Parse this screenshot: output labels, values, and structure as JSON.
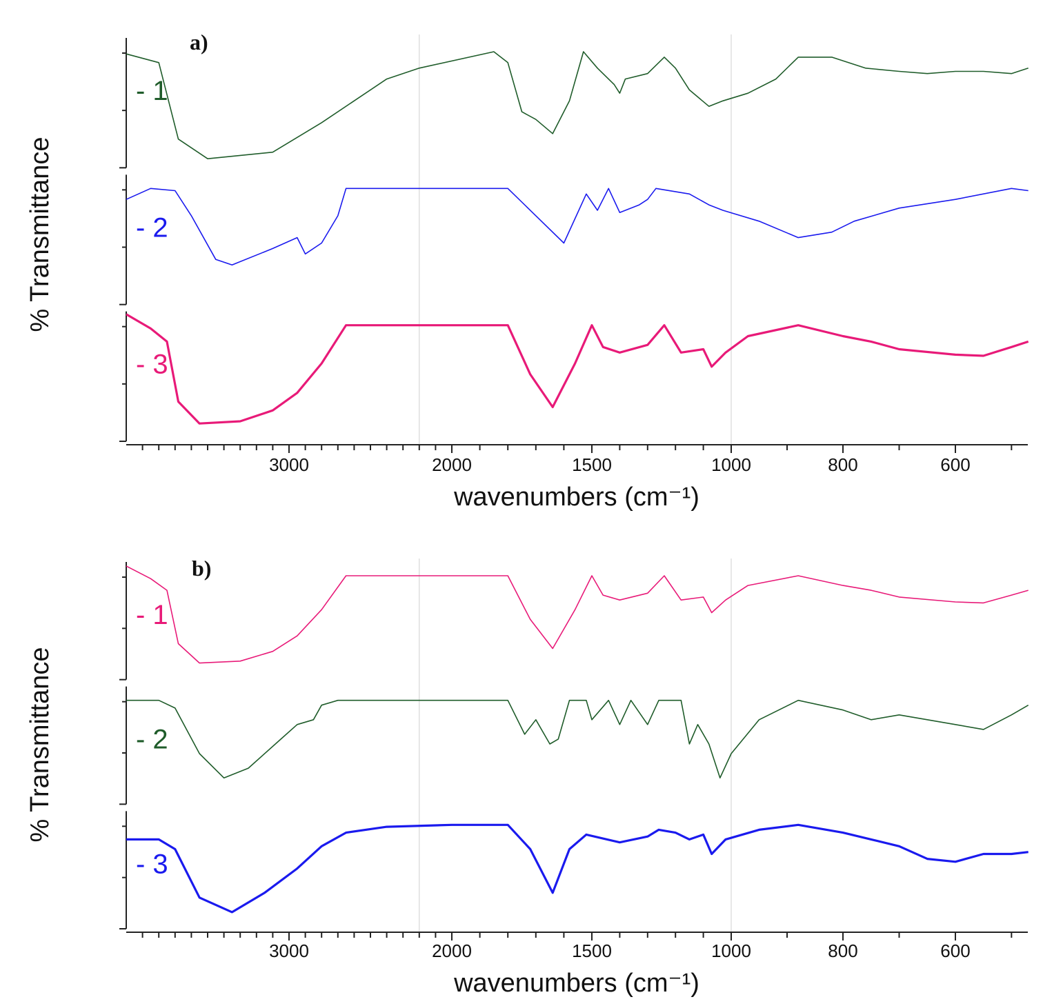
{
  "chart_data": [
    {
      "type": "line",
      "panel_label": "a)",
      "ylabel": "% Transmittance",
      "xlabel": "wavenumbers (cm⁻¹)",
      "x_ticks": [
        "3000",
        "2000",
        "1500",
        "1000",
        "800",
        "600"
      ],
      "x_tick_values": [
        3000,
        2000,
        1500,
        1000,
        800,
        600
      ],
      "xlim": [
        4000,
        450
      ],
      "axis_scale": "split: linear 4000-2000 and 2000-450 segments",
      "ylim": [
        0,
        1
      ],
      "gridlines_x": [
        2200,
        1000
      ],
      "series": [
        {
          "name": "- 1",
          "color": "#1f5c2a",
          "stacked_index": 0,
          "points": [
            [
              4000,
              0.98
            ],
            [
              3800,
              0.9
            ],
            [
              3680,
              0.2
            ],
            [
              3500,
              0.02
            ],
            [
              3100,
              0.08
            ],
            [
              2800,
              0.35
            ],
            [
              2400,
              0.75
            ],
            [
              2200,
              0.85
            ],
            [
              1850,
              1.0
            ],
            [
              1800,
              0.9
            ],
            [
              1750,
              0.45
            ],
            [
              1700,
              0.38
            ],
            [
              1640,
              0.25
            ],
            [
              1580,
              0.55
            ],
            [
              1530,
              1.0
            ],
            [
              1480,
              0.85
            ],
            [
              1420,
              0.7
            ],
            [
              1400,
              0.62
            ],
            [
              1380,
              0.75
            ],
            [
              1300,
              0.8
            ],
            [
              1240,
              0.95
            ],
            [
              1200,
              0.85
            ],
            [
              1150,
              0.65
            ],
            [
              1080,
              0.5
            ],
            [
              1030,
              0.55
            ],
            [
              970,
              0.62
            ],
            [
              920,
              0.75
            ],
            [
              880,
              0.95
            ],
            [
              820,
              0.95
            ],
            [
              760,
              0.85
            ],
            [
              700,
              0.82
            ],
            [
              650,
              0.8
            ],
            [
              600,
              0.82
            ],
            [
              550,
              0.82
            ],
            [
              500,
              0.8
            ],
            [
              470,
              0.85
            ]
          ]
        },
        {
          "name": "- 2",
          "color": "#1a1aee",
          "stacked_index": 1,
          "points": [
            [
              4000,
              0.9
            ],
            [
              3850,
              1.0
            ],
            [
              3700,
              0.98
            ],
            [
              3600,
              0.75
            ],
            [
              3450,
              0.35
            ],
            [
              3350,
              0.3
            ],
            [
              3100,
              0.45
            ],
            [
              2950,
              0.55
            ],
            [
              2900,
              0.4
            ],
            [
              2800,
              0.5
            ],
            [
              2700,
              0.75
            ],
            [
              2650,
              1.0
            ],
            [
              1800,
              1.0
            ],
            [
              1700,
              0.75
            ],
            [
              1600,
              0.5
            ],
            [
              1520,
              0.95
            ],
            [
              1480,
              0.8
            ],
            [
              1440,
              1.0
            ],
            [
              1400,
              0.78
            ],
            [
              1330,
              0.85
            ],
            [
              1300,
              0.9
            ],
            [
              1270,
              1.0
            ],
            [
              1150,
              0.95
            ],
            [
              1080,
              0.85
            ],
            [
              1030,
              0.8
            ],
            [
              950,
              0.7
            ],
            [
              880,
              0.55
            ],
            [
              820,
              0.6
            ],
            [
              780,
              0.7
            ],
            [
              700,
              0.82
            ],
            [
              600,
              0.9
            ],
            [
              500,
              1.0
            ],
            [
              470,
              0.98
            ]
          ]
        },
        {
          "name": "- 3",
          "color": "#e81a78",
          "stacked_index": 2,
          "points": [
            [
              4000,
              1.1
            ],
            [
              3850,
              0.97
            ],
            [
              3750,
              0.85
            ],
            [
              3680,
              0.3
            ],
            [
              3550,
              0.1
            ],
            [
              3300,
              0.12
            ],
            [
              3100,
              0.22
            ],
            [
              2950,
              0.38
            ],
            [
              2800,
              0.65
            ],
            [
              2650,
              1.0
            ],
            [
              1800,
              1.0
            ],
            [
              1720,
              0.55
            ],
            [
              1640,
              0.25
            ],
            [
              1560,
              0.65
            ],
            [
              1500,
              1.0
            ],
            [
              1460,
              0.8
            ],
            [
              1400,
              0.75
            ],
            [
              1300,
              0.82
            ],
            [
              1240,
              1.0
            ],
            [
              1180,
              0.75
            ],
            [
              1100,
              0.78
            ],
            [
              1070,
              0.62
            ],
            [
              1020,
              0.75
            ],
            [
              970,
              0.9
            ],
            [
              880,
              1.0
            ],
            [
              800,
              0.9
            ],
            [
              750,
              0.85
            ],
            [
              700,
              0.78
            ],
            [
              600,
              0.73
            ],
            [
              550,
              0.72
            ],
            [
              500,
              0.8
            ],
            [
              470,
              0.85
            ]
          ]
        }
      ],
      "legend": [
        "- 1",
        "- 2",
        "- 3"
      ]
    },
    {
      "type": "line",
      "panel_label": "b)",
      "ylabel": "% Transmittance",
      "xlabel": "wavenumbers (cm⁻¹)",
      "x_ticks": [
        "3000",
        "2000",
        "1500",
        "1000",
        "800",
        "600"
      ],
      "x_tick_values": [
        3000,
        2000,
        1500,
        1000,
        800,
        600
      ],
      "xlim": [
        4000,
        450
      ],
      "axis_scale": "split: linear 4000-2000 and 2000-450 segments",
      "ylim": [
        0,
        1
      ],
      "gridlines_x": [
        2200,
        1000
      ],
      "series": [
        {
          "name": "- 1",
          "color": "#e81a78",
          "stacked_index": 0,
          "points": [
            [
              4000,
              1.1
            ],
            [
              3850,
              0.97
            ],
            [
              3750,
              0.85
            ],
            [
              3680,
              0.3
            ],
            [
              3550,
              0.1
            ],
            [
              3300,
              0.12
            ],
            [
              3100,
              0.22
            ],
            [
              2950,
              0.38
            ],
            [
              2800,
              0.65
            ],
            [
              2650,
              1.0
            ],
            [
              1800,
              1.0
            ],
            [
              1720,
              0.55
            ],
            [
              1640,
              0.25
            ],
            [
              1560,
              0.65
            ],
            [
              1500,
              1.0
            ],
            [
              1460,
              0.8
            ],
            [
              1400,
              0.75
            ],
            [
              1300,
              0.82
            ],
            [
              1240,
              1.0
            ],
            [
              1180,
              0.75
            ],
            [
              1100,
              0.78
            ],
            [
              1070,
              0.62
            ],
            [
              1020,
              0.75
            ],
            [
              970,
              0.9
            ],
            [
              880,
              1.0
            ],
            [
              800,
              0.9
            ],
            [
              750,
              0.85
            ],
            [
              700,
              0.78
            ],
            [
              600,
              0.73
            ],
            [
              550,
              0.72
            ],
            [
              500,
              0.8
            ],
            [
              470,
              0.85
            ]
          ]
        },
        {
          "name": "- 2",
          "color": "#1f5c2a",
          "stacked_index": 1,
          "points": [
            [
              4000,
              1.0
            ],
            [
              3800,
              1.0
            ],
            [
              3700,
              0.92
            ],
            [
              3550,
              0.45
            ],
            [
              3400,
              0.2
            ],
            [
              3250,
              0.3
            ],
            [
              3050,
              0.6
            ],
            [
              2950,
              0.75
            ],
            [
              2850,
              0.8
            ],
            [
              2800,
              0.95
            ],
            [
              2700,
              1.0
            ],
            [
              1800,
              1.0
            ],
            [
              1740,
              0.65
            ],
            [
              1700,
              0.8
            ],
            [
              1650,
              0.55
            ],
            [
              1620,
              0.6
            ],
            [
              1580,
              1.0
            ],
            [
              1520,
              1.0
            ],
            [
              1500,
              0.8
            ],
            [
              1440,
              1.0
            ],
            [
              1400,
              0.75
            ],
            [
              1360,
              1.0
            ],
            [
              1300,
              0.75
            ],
            [
              1260,
              1.0
            ],
            [
              1180,
              1.0
            ],
            [
              1150,
              0.55
            ],
            [
              1120,
              0.75
            ],
            [
              1080,
              0.55
            ],
            [
              1040,
              0.2
            ],
            [
              1000,
              0.45
            ],
            [
              950,
              0.8
            ],
            [
              880,
              1.0
            ],
            [
              800,
              0.9
            ],
            [
              750,
              0.8
            ],
            [
              700,
              0.85
            ],
            [
              650,
              0.8
            ],
            [
              600,
              0.75
            ],
            [
              550,
              0.7
            ],
            [
              500,
              0.85
            ],
            [
              470,
              0.95
            ]
          ]
        },
        {
          "name": "- 3",
          "color": "#1a1aee",
          "stacked_index": 2,
          "points": [
            [
              4000,
              0.85
            ],
            [
              3800,
              0.85
            ],
            [
              3700,
              0.75
            ],
            [
              3550,
              0.25
            ],
            [
              3350,
              0.1
            ],
            [
              3150,
              0.3
            ],
            [
              2950,
              0.55
            ],
            [
              2800,
              0.78
            ],
            [
              2650,
              0.92
            ],
            [
              2400,
              0.98
            ],
            [
              2000,
              1.0
            ],
            [
              1800,
              1.0
            ],
            [
              1720,
              0.75
            ],
            [
              1640,
              0.3
            ],
            [
              1580,
              0.75
            ],
            [
              1520,
              0.9
            ],
            [
              1400,
              0.82
            ],
            [
              1300,
              0.88
            ],
            [
              1260,
              0.95
            ],
            [
              1200,
              0.92
            ],
            [
              1150,
              0.85
            ],
            [
              1100,
              0.9
            ],
            [
              1070,
              0.7
            ],
            [
              1020,
              0.85
            ],
            [
              950,
              0.95
            ],
            [
              880,
              1.0
            ],
            [
              800,
              0.92
            ],
            [
              750,
              0.85
            ],
            [
              700,
              0.78
            ],
            [
              650,
              0.65
            ],
            [
              600,
              0.62
            ],
            [
              550,
              0.7
            ],
            [
              500,
              0.7
            ],
            [
              470,
              0.72
            ]
          ]
        }
      ],
      "legend": [
        "- 1",
        "- 2",
        "- 3"
      ]
    }
  ]
}
